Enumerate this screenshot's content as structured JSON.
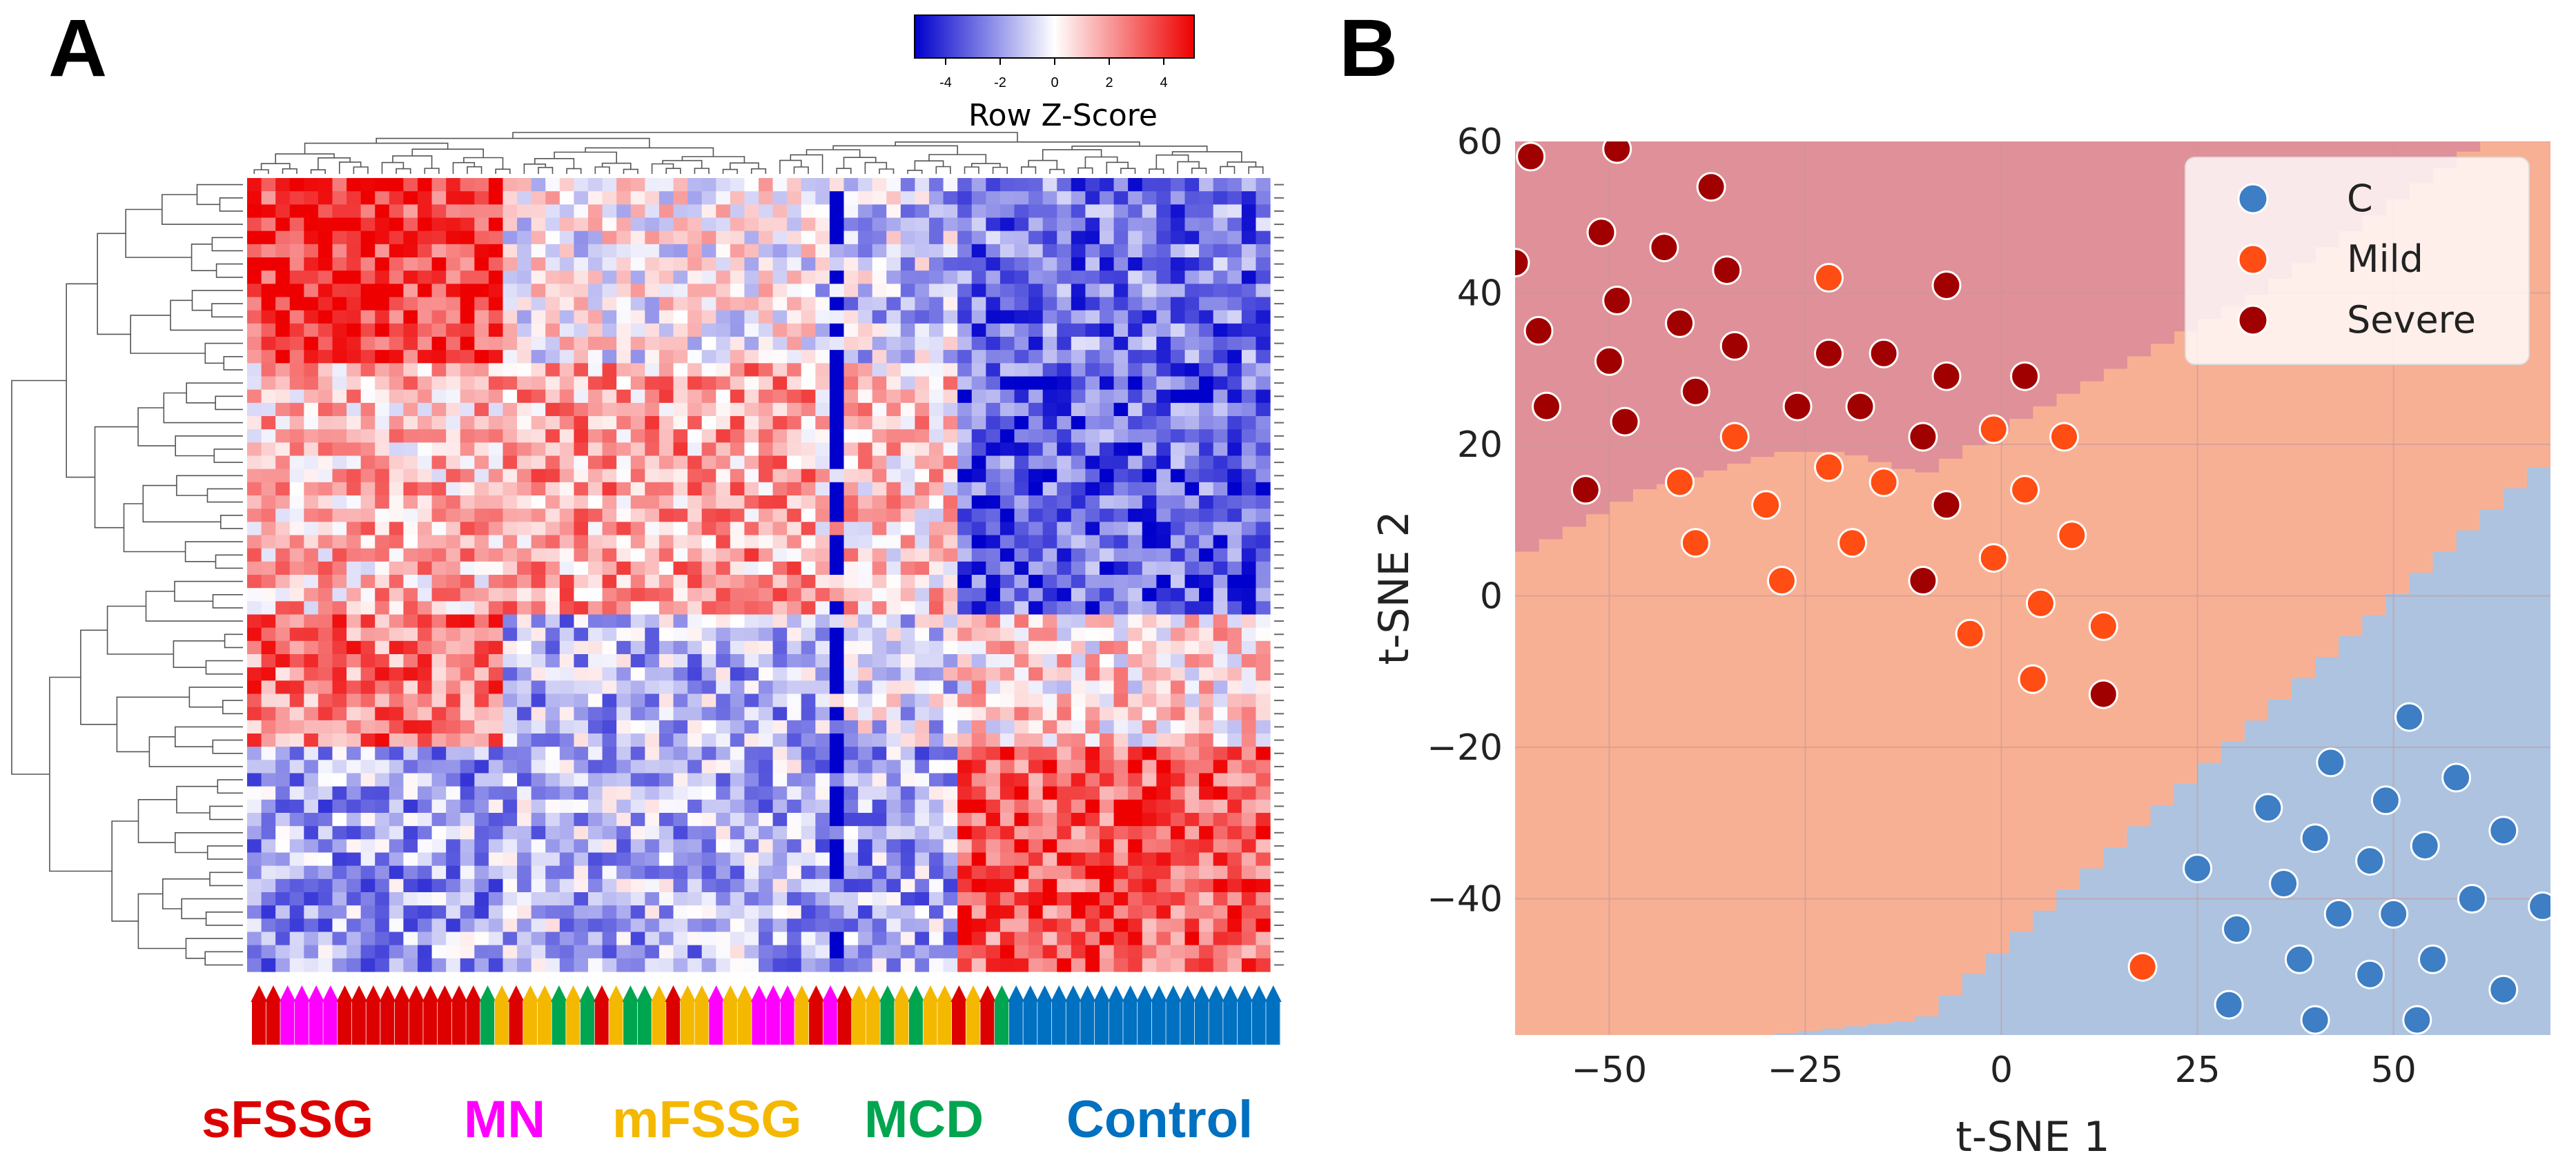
{
  "panel_a_label": "A",
  "panel_b_label": "B",
  "chart_data": [
    {
      "type": "heatmap",
      "title": "",
      "colorbar": {
        "title": "Row Z-Score",
        "ticks": [
          "-4",
          "-2",
          "0",
          "2",
          "4"
        ],
        "range": [
          -4,
          4
        ],
        "colors": {
          "low": "#0000cc",
          "mid": "#ffffff",
          "high": "#ee0000"
        }
      },
      "n_rows": 60,
      "n_cols": 72,
      "row_dendrogram": true,
      "col_dendrogram": true,
      "groups": [
        {
          "name": "sFSSG",
          "color": "#dd0000"
        },
        {
          "name": "MN",
          "color": "#ff00ff"
        },
        {
          "name": "mFSSG",
          "color": "#f5b800"
        },
        {
          "name": "MCD",
          "color": "#00a550"
        },
        {
          "name": "Control",
          "color": "#0070c0"
        }
      ],
      "column_group_sequence": [
        0,
        0,
        1,
        1,
        1,
        1,
        0,
        0,
        0,
        0,
        0,
        0,
        0,
        0,
        0,
        0,
        3,
        2,
        0,
        2,
        2,
        3,
        2,
        3,
        0,
        2,
        3,
        3,
        2,
        0,
        2,
        2,
        1,
        2,
        2,
        1,
        1,
        1,
        2,
        0,
        1,
        0,
        2,
        2,
        3,
        2,
        3,
        2,
        2,
        0,
        2,
        0,
        3,
        4,
        4,
        4,
        4,
        4,
        4,
        4,
        4,
        4,
        4,
        4,
        4,
        4,
        4,
        4,
        4,
        4,
        4,
        4
      ],
      "row_block_boundaries": [
        0,
        14,
        33,
        43,
        60
      ],
      "column_block_boundaries": [
        0,
        18,
        40,
        50,
        72
      ]
    },
    {
      "type": "scatter",
      "title": "",
      "xlabel": "t-SNE 1",
      "ylabel": "t-SNE 2",
      "xlim": [
        -62,
        70
      ],
      "ylim": [
        -58,
        60
      ],
      "xticks": [
        -50,
        -25,
        0,
        25,
        50
      ],
      "xtick_labels": [
        "−50",
        "−25",
        "0",
        "25",
        "50"
      ],
      "yticks": [
        60,
        40,
        20,
        0,
        -20,
        -40
      ],
      "ytick_labels": [
        "60",
        "40",
        "20",
        "0",
        "−20",
        "−40"
      ],
      "grid": true,
      "legend_position": "top-right",
      "decision_regions": [
        {
          "class": "Severe",
          "color": "#e09098"
        },
        {
          "class": "Mild",
          "color": "#f8b094"
        },
        {
          "class": "C",
          "color": "#adc3e0"
        }
      ],
      "series": [
        {
          "name": "C",
          "color": "#3d7ec4",
          "points": [
            [
              52,
              -16
            ],
            [
              42,
              -22
            ],
            [
              58,
              -24
            ],
            [
              34,
              -28
            ],
            [
              49,
              -27
            ],
            [
              40,
              -32
            ],
            [
              47,
              -35
            ],
            [
              54,
              -33
            ],
            [
              64,
              -31
            ],
            [
              25,
              -36
            ],
            [
              36,
              -38
            ],
            [
              43,
              -42
            ],
            [
              50,
              -42
            ],
            [
              60,
              -40
            ],
            [
              69,
              -41
            ],
            [
              30,
              -44
            ],
            [
              38,
              -48
            ],
            [
              47,
              -50
            ],
            [
              55,
              -48
            ],
            [
              64,
              -52
            ],
            [
              29,
              -54
            ],
            [
              40,
              -56
            ],
            [
              53,
              -56
            ]
          ]
        },
        {
          "name": "Mild",
          "color": "#ff4d14",
          "points": [
            [
              -22,
              42
            ],
            [
              -34,
              21
            ],
            [
              -41,
              15
            ],
            [
              -22,
              17
            ],
            [
              -15,
              15
            ],
            [
              -1,
              22
            ],
            [
              8,
              21
            ],
            [
              -30,
              12
            ],
            [
              3,
              14
            ],
            [
              -39,
              7
            ],
            [
              -19,
              7
            ],
            [
              9,
              8
            ],
            [
              -28,
              2
            ],
            [
              -1,
              5
            ],
            [
              5,
              -1
            ],
            [
              13,
              -4
            ],
            [
              -4,
              -5
            ],
            [
              4,
              -11
            ],
            [
              18,
              -49
            ]
          ]
        },
        {
          "name": "Severe",
          "color": "#a00000",
          "points": [
            [
              -60,
              58
            ],
            [
              -49,
              59
            ],
            [
              -37,
              54
            ],
            [
              -51,
              48
            ],
            [
              -43,
              46
            ],
            [
              -62,
              44
            ],
            [
              -35,
              43
            ],
            [
              -49,
              39
            ],
            [
              -7,
              41
            ],
            [
              -59,
              35
            ],
            [
              -41,
              36
            ],
            [
              -50,
              31
            ],
            [
              -34,
              33
            ],
            [
              -22,
              32
            ],
            [
              -15,
              32
            ],
            [
              -7,
              29
            ],
            [
              3,
              29
            ],
            [
              -58,
              25
            ],
            [
              -48,
              23
            ],
            [
              -39,
              27
            ],
            [
              -26,
              25
            ],
            [
              -18,
              25
            ],
            [
              -10,
              21
            ],
            [
              -53,
              14
            ],
            [
              -7,
              12
            ],
            [
              -10,
              2
            ],
            [
              13,
              -13
            ]
          ]
        }
      ]
    }
  ]
}
